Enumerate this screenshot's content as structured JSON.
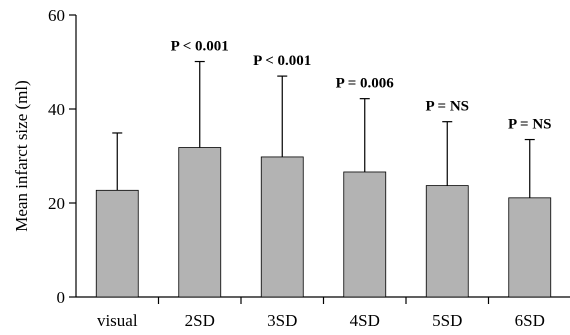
{
  "chart_data": {
    "type": "bar",
    "title": "",
    "xlabel": "",
    "ylabel": "Mean infarct size (ml)",
    "ylim": [
      0,
      60
    ],
    "yticks": [
      0,
      20,
      40,
      60
    ],
    "grid": false,
    "categories": [
      "visual",
      "2SD",
      "3SD",
      "4SD",
      "5SD",
      "6SD"
    ],
    "values": [
      22.7,
      31.8,
      29.8,
      26.6,
      23.7,
      21.1
    ],
    "error_upper": [
      12.2,
      18.3,
      17.2,
      15.6,
      13.6,
      12.4
    ],
    "annotations": [
      "",
      "P < 0.001",
      "P < 0.001",
      "P = 0.006",
      "P = NS",
      "P = NS"
    ],
    "colors": {
      "bar": "#b3b3b3",
      "bar_stroke": "#000000",
      "axis": "#000000"
    }
  }
}
